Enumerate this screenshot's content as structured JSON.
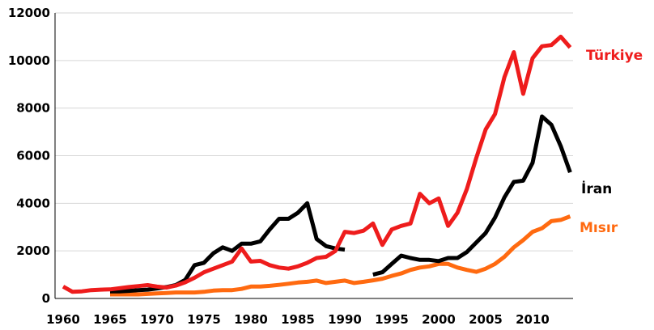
{
  "chart_data": {
    "type": "line",
    "title": "",
    "xlabel": "",
    "ylabel": "",
    "xlim": [
      1960,
      2014
    ],
    "ylim": [
      0,
      12000
    ],
    "x_ticks": [
      1960,
      1965,
      1970,
      1975,
      1980,
      1985,
      1990,
      1995,
      2000,
      2005,
      2010
    ],
    "y_ticks": [
      0,
      2000,
      4000,
      6000,
      8000,
      10000,
      12000
    ],
    "x_tick_labels": [
      "1960",
      "1965",
      "1970",
      "1975",
      "1980",
      "1985",
      "1990",
      "1995",
      "2000",
      "2005",
      "2010"
    ],
    "y_tick_labels": [
      "0",
      "2000",
      "4000",
      "6000",
      "8000",
      "10000",
      "12000"
    ],
    "grid": "horizontal",
    "legend": "direct labels at right end of lines",
    "series": [
      {
        "name": "Türkiye",
        "color": "#ee1c1c",
        "points": [
          [
            1960,
            500
          ],
          [
            1961,
            280
          ],
          [
            1962,
            300
          ],
          [
            1963,
            350
          ],
          [
            1964,
            370
          ],
          [
            1965,
            380
          ],
          [
            1966,
            430
          ],
          [
            1967,
            480
          ],
          [
            1968,
            520
          ],
          [
            1969,
            560
          ],
          [
            1970,
            500
          ],
          [
            1971,
            460
          ],
          [
            1972,
            540
          ],
          [
            1973,
            680
          ],
          [
            1974,
            870
          ],
          [
            1975,
            1100
          ],
          [
            1976,
            1250
          ],
          [
            1977,
            1400
          ],
          [
            1978,
            1550
          ],
          [
            1979,
            2100
          ],
          [
            1980,
            1550
          ],
          [
            1981,
            1580
          ],
          [
            1982,
            1400
          ],
          [
            1983,
            1300
          ],
          [
            1984,
            1250
          ],
          [
            1985,
            1350
          ],
          [
            1986,
            1500
          ],
          [
            1987,
            1700
          ],
          [
            1988,
            1750
          ],
          [
            1989,
            2000
          ],
          [
            1990,
            2800
          ],
          [
            1991,
            2750
          ],
          [
            1992,
            2850
          ],
          [
            1993,
            3150
          ],
          [
            1994,
            2250
          ],
          [
            1995,
            2900
          ],
          [
            1996,
            3050
          ],
          [
            1997,
            3150
          ],
          [
            1998,
            4400
          ],
          [
            1999,
            4000
          ],
          [
            2000,
            4200
          ],
          [
            2001,
            3050
          ],
          [
            2002,
            3600
          ],
          [
            2003,
            4600
          ],
          [
            2004,
            5900
          ],
          [
            2005,
            7100
          ],
          [
            2006,
            7750
          ],
          [
            2007,
            9300
          ],
          [
            2008,
            10350
          ],
          [
            2009,
            8600
          ],
          [
            2010,
            10100
          ],
          [
            2011,
            10600
          ],
          [
            2012,
            10650
          ],
          [
            2013,
            11000
          ],
          [
            2014,
            10550
          ]
        ]
      },
      {
        "name": "İran",
        "color": "#000000",
        "points": [
          [
            1965,
            300
          ],
          [
            1966,
            300
          ],
          [
            1967,
            320
          ],
          [
            1968,
            350
          ],
          [
            1969,
            370
          ],
          [
            1970,
            420
          ],
          [
            1971,
            480
          ],
          [
            1972,
            560
          ],
          [
            1973,
            780
          ],
          [
            1974,
            1400
          ],
          [
            1975,
            1500
          ],
          [
            1976,
            1900
          ],
          [
            1977,
            2150
          ],
          [
            1978,
            2000
          ],
          [
            1979,
            2300
          ],
          [
            1980,
            2300
          ],
          [
            1981,
            2400
          ],
          [
            1982,
            2900
          ],
          [
            1983,
            3350
          ],
          [
            1984,
            3350
          ],
          [
            1985,
            3600
          ],
          [
            1986,
            4000
          ],
          [
            1987,
            2500
          ],
          [
            1988,
            2200
          ],
          [
            1989,
            2100
          ],
          [
            1990,
            2050
          ],
          null,
          [
            1993,
            1000
          ],
          [
            1994,
            1100
          ],
          [
            1995,
            1450
          ],
          [
            1996,
            1800
          ],
          [
            1997,
            1700
          ],
          [
            1998,
            1620
          ],
          [
            1999,
            1620
          ],
          [
            2000,
            1570
          ],
          [
            2001,
            1700
          ],
          [
            2002,
            1700
          ],
          [
            2003,
            1950
          ],
          [
            2004,
            2350
          ],
          [
            2005,
            2750
          ],
          [
            2006,
            3400
          ],
          [
            2007,
            4250
          ],
          [
            2008,
            4900
          ],
          [
            2009,
            4950
          ],
          [
            2010,
            5700
          ],
          [
            2011,
            7650
          ],
          [
            2012,
            7300
          ],
          [
            2013,
            6400
          ],
          [
            2014,
            5300
          ]
        ]
      },
      {
        "name": "Mısır",
        "color": "#ff6a10",
        "points": [
          [
            1965,
            170
          ],
          [
            1966,
            170
          ],
          [
            1967,
            170
          ],
          [
            1968,
            170
          ],
          [
            1969,
            190
          ],
          [
            1970,
            210
          ],
          [
            1971,
            230
          ],
          [
            1972,
            250
          ],
          [
            1973,
            250
          ],
          [
            1974,
            250
          ],
          [
            1975,
            280
          ],
          [
            1976,
            330
          ],
          [
            1977,
            350
          ],
          [
            1978,
            350
          ],
          [
            1979,
            400
          ],
          [
            1980,
            500
          ],
          [
            1981,
            500
          ],
          [
            1982,
            530
          ],
          [
            1983,
            570
          ],
          [
            1984,
            620
          ],
          [
            1985,
            670
          ],
          [
            1986,
            700
          ],
          [
            1987,
            750
          ],
          [
            1988,
            650
          ],
          [
            1989,
            700
          ],
          [
            1990,
            750
          ],
          [
            1991,
            650
          ],
          [
            1992,
            700
          ],
          [
            1993,
            760
          ],
          [
            1994,
            830
          ],
          [
            1995,
            950
          ],
          [
            1996,
            1050
          ],
          [
            1997,
            1200
          ],
          [
            1998,
            1300
          ],
          [
            1999,
            1350
          ],
          [
            2000,
            1450
          ],
          [
            2001,
            1450
          ],
          [
            2002,
            1300
          ],
          [
            2003,
            1200
          ],
          [
            2004,
            1120
          ],
          [
            2005,
            1250
          ],
          [
            2006,
            1450
          ],
          [
            2007,
            1750
          ],
          [
            2008,
            2150
          ],
          [
            2009,
            2450
          ],
          [
            2010,
            2800
          ],
          [
            2011,
            2950
          ],
          [
            2012,
            3250
          ],
          [
            2013,
            3300
          ],
          [
            2014,
            3450
          ]
        ]
      }
    ],
    "series_labels": [
      "Türkiye",
      "İran",
      "Mısır"
    ]
  }
}
